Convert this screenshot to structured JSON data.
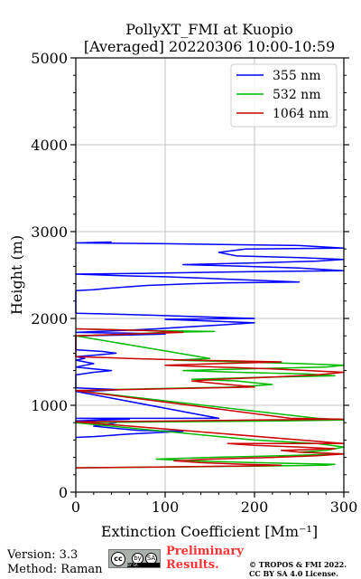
{
  "chart_data": {
    "type": "line",
    "title": [
      "PollyXT_FMI at Kuopio",
      "[Averaged] 20220306 10:00-10:59"
    ],
    "xlabel": "Extinction Coefficient [Mm⁻¹]",
    "ylabel": "Height (m)",
    "xlim": [
      0,
      300
    ],
    "ylim": [
      0,
      5000
    ],
    "xticks": [
      0,
      100,
      200,
      300
    ],
    "yticks": [
      0,
      1000,
      2000,
      3000,
      4000,
      5000
    ],
    "xtick_labels": [
      "0",
      "100",
      "200",
      "300"
    ],
    "ytick_labels": [
      "0",
      "1000",
      "2000",
      "3000",
      "4000",
      "5000"
    ],
    "grid": true,
    "legend_position": "top-right",
    "series": [
      {
        "name": "355 nm",
        "color": "#0000ff",
        "points": [
          [
            0,
            630
          ],
          [
            20,
            640
          ],
          [
            60,
            670
          ],
          [
            100,
            690
          ],
          [
            120,
            700
          ],
          [
            70,
            710
          ],
          [
            40,
            740
          ],
          [
            20,
            760
          ],
          [
            35,
            780
          ],
          [
            45,
            800
          ],
          [
            0,
            820
          ],
          [
            60,
            840
          ],
          [
            0,
            850
          ],
          [
            160,
            850
          ],
          [
            0,
            1160
          ],
          [
            30,
            1170
          ],
          [
            50,
            1180
          ],
          [
            0,
            1200
          ],
          [
            0,
            1350
          ],
          [
            20,
            1380
          ],
          [
            40,
            1400
          ],
          [
            20,
            1420
          ],
          [
            0,
            1440
          ],
          [
            10,
            1460
          ],
          [
            20,
            1480
          ],
          [
            10,
            1500
          ],
          [
            0,
            1520
          ],
          [
            10,
            1540
          ],
          [
            0,
            1560
          ],
          [
            25,
            1580
          ],
          [
            45,
            1600
          ],
          [
            30,
            1620
          ],
          [
            0,
            1640
          ],
          [
            0,
            1800
          ],
          [
            60,
            1810
          ],
          [
            100,
            1820
          ],
          [
            60,
            1830
          ],
          [
            0,
            1840
          ],
          [
            50,
            1860
          ],
          [
            90,
            1880
          ],
          [
            120,
            1900
          ],
          [
            170,
            1930
          ],
          [
            200,
            1950
          ],
          [
            150,
            1970
          ],
          [
            100,
            1990
          ],
          [
            200,
            2000
          ],
          [
            140,
            2020
          ],
          [
            80,
            2040
          ],
          [
            0,
            2060
          ],
          [
            0,
            2320
          ],
          [
            20,
            2330
          ],
          [
            40,
            2350
          ],
          [
            80,
            2380
          ],
          [
            130,
            2400
          ],
          [
            170,
            2410
          ],
          [
            250,
            2420
          ],
          [
            200,
            2440
          ],
          [
            150,
            2460
          ],
          [
            100,
            2480
          ],
          [
            60,
            2490
          ],
          [
            0,
            2510
          ],
          [
            80,
            2520
          ],
          [
            140,
            2530
          ],
          [
            200,
            2540
          ],
          [
            300,
            2550
          ],
          [
            250,
            2580
          ],
          [
            190,
            2600
          ],
          [
            120,
            2620
          ],
          [
            200,
            2640
          ],
          [
            270,
            2660
          ],
          [
            300,
            2680
          ],
          [
            250,
            2700
          ],
          [
            180,
            2720
          ],
          [
            160,
            2760
          ],
          [
            190,
            2800
          ],
          [
            300,
            2810
          ],
          [
            250,
            2840
          ],
          [
            100,
            2860
          ],
          [
            0,
            2870
          ],
          [
            40,
            2880
          ]
        ]
      },
      {
        "name": "532 nm",
        "color": "#00bb00",
        "points": [
          [
            0,
            280
          ],
          [
            100,
            290
          ],
          [
            200,
            300
          ],
          [
            280,
            310
          ],
          [
            290,
            320
          ],
          [
            200,
            340
          ],
          [
            130,
            360
          ],
          [
            90,
            380
          ],
          [
            150,
            400
          ],
          [
            230,
            420
          ],
          [
            300,
            440
          ],
          [
            250,
            460
          ],
          [
            280,
            480
          ],
          [
            300,
            520
          ],
          [
            270,
            560
          ],
          [
            200,
            600
          ],
          [
            0,
            800
          ],
          [
            100,
            810
          ],
          [
            230,
            820
          ],
          [
            300,
            830
          ],
          [
            270,
            850
          ],
          [
            0,
            1170
          ],
          [
            40,
            1180
          ],
          [
            80,
            1190
          ],
          [
            130,
            1200
          ],
          [
            180,
            1210
          ],
          [
            220,
            1240
          ],
          [
            180,
            1280
          ],
          [
            130,
            1300
          ],
          [
            200,
            1320
          ],
          [
            290,
            1340
          ],
          [
            260,
            1360
          ],
          [
            180,
            1380
          ],
          [
            120,
            1400
          ],
          [
            190,
            1420
          ],
          [
            280,
            1440
          ],
          [
            300,
            1460
          ],
          [
            250,
            1480
          ],
          [
            180,
            1500
          ],
          [
            110,
            1520
          ],
          [
            150,
            1540
          ],
          [
            0,
            1800
          ],
          [
            60,
            1820
          ],
          [
            100,
            1840
          ],
          [
            155,
            1850
          ],
          [
            80,
            1860
          ],
          [
            0,
            1880
          ]
        ]
      },
      {
        "name": "1064 nm",
        "color": "#cc0000",
        "points": [
          [
            0,
            280
          ],
          [
            90,
            290
          ],
          [
            180,
            300
          ],
          [
            230,
            310
          ],
          [
            190,
            320
          ],
          [
            140,
            340
          ],
          [
            110,
            360
          ],
          [
            150,
            380
          ],
          [
            220,
            400
          ],
          [
            270,
            420
          ],
          [
            300,
            440
          ],
          [
            250,
            460
          ],
          [
            230,
            480
          ],
          [
            290,
            500
          ],
          [
            250,
            520
          ],
          [
            200,
            540
          ],
          [
            170,
            560
          ],
          [
            300,
            560
          ],
          [
            0,
            810
          ],
          [
            120,
            820
          ],
          [
            200,
            830
          ],
          [
            300,
            840
          ],
          [
            240,
            850
          ],
          [
            0,
            1170
          ],
          [
            50,
            1180
          ],
          [
            100,
            1190
          ],
          [
            150,
            1200
          ],
          [
            200,
            1210
          ],
          [
            170,
            1240
          ],
          [
            130,
            1280
          ],
          [
            160,
            1300
          ],
          [
            210,
            1320
          ],
          [
            270,
            1350
          ],
          [
            300,
            1380
          ],
          [
            260,
            1400
          ],
          [
            220,
            1420
          ],
          [
            160,
            1440
          ],
          [
            100,
            1460
          ],
          [
            160,
            1480
          ],
          [
            230,
            1500
          ],
          [
            130,
            1520
          ],
          [
            60,
            1540
          ],
          [
            0,
            1560
          ],
          [
            0,
            1800
          ],
          [
            60,
            1820
          ],
          [
            120,
            1840
          ],
          [
            80,
            1860
          ],
          [
            0,
            1880
          ]
        ]
      }
    ]
  },
  "footer": {
    "version": "Version: 3.3",
    "method": "Method: Raman",
    "license_badge": {
      "cc": "cc",
      "by": "by",
      "sa": "SA",
      "strip": "BY   SA"
    },
    "preliminary": [
      "Preliminary",
      "Results."
    ],
    "copyright": [
      "© TROPOS & FMI 2022.",
      "CC BY SA 4.0 License."
    ]
  }
}
